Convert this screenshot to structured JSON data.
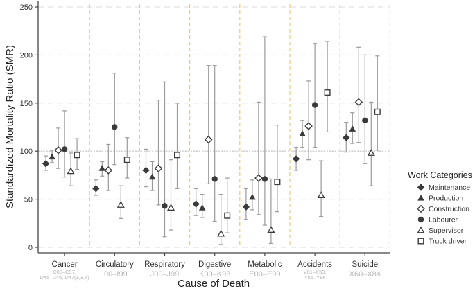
{
  "chart_data": {
    "type": "scatter",
    "subtype": "point-with-error-bars",
    "title": "",
    "xlabel": "Cause of Death",
    "ylabel": "Standardized Mortality Ratio (SMR)",
    "ylim": [
      0,
      250
    ],
    "yticks": [
      0,
      50,
      100,
      150,
      200,
      250
    ],
    "reference_line": 100,
    "grid": "horizontal dashed at y ticks; vertical dashed separators between categories",
    "legend": {
      "title": "Work Categories",
      "placement": "right"
    },
    "categories": [
      {
        "name": "Cancer",
        "codes": [
          "C00–C97,",
          "D45–D46, D47(1,3,4)"
        ]
      },
      {
        "name": "Circulatory",
        "codes": [
          "I00–I99"
        ]
      },
      {
        "name": "Respiratory",
        "codes": [
          "J00–J99"
        ]
      },
      {
        "name": "Digestive",
        "codes": [
          "K00–K93"
        ]
      },
      {
        "name": "Metabolic",
        "codes": [
          "E00–E99"
        ]
      },
      {
        "name": "Accidents",
        "codes": [
          "V01–X59,",
          "Y85–Y86"
        ]
      },
      {
        "name": "Suicide",
        "codes": [
          "X60–X84"
        ]
      }
    ],
    "series": [
      {
        "name": "Maintenance",
        "marker": "diamond-filled",
        "values": [
          87,
          61,
          80,
          45,
          42,
          92,
          114
        ],
        "lower": [
          80,
          54,
          63,
          33,
          29,
          80,
          99
        ],
        "upper": [
          95,
          70,
          102,
          61,
          61,
          104,
          130
        ]
      },
      {
        "name": "Production",
        "marker": "triangle-filled",
        "values": [
          94,
          82,
          73,
          41,
          52,
          118,
          123
        ],
        "lower": [
          88,
          74,
          59,
          31,
          39,
          104,
          108
        ],
        "upper": [
          101,
          89,
          89,
          55,
          70,
          132,
          140
        ]
      },
      {
        "name": "Construction",
        "marker": "diamond-open",
        "values": [
          101,
          80,
          82,
          112,
          72,
          126,
          151
        ],
        "lower": [
          82,
          59,
          44,
          66,
          34,
          91,
          109
        ],
        "upper": [
          124,
          107,
          153,
          189,
          151,
          173,
          208
        ]
      },
      {
        "name": "Labourer",
        "marker": "circle-filled",
        "values": [
          102,
          125,
          43,
          71,
          71,
          148,
          132
        ],
        "lower": [
          73,
          86,
          11,
          27,
          23,
          104,
          87
        ],
        "upper": [
          142,
          181,
          172,
          189,
          219,
          212,
          200
        ]
      },
      {
        "name": "Supervisor",
        "marker": "triangle-open",
        "values": [
          79,
          44,
          41,
          14,
          18,
          54,
          98
        ],
        "lower": [
          64,
          30,
          18,
          3,
          4,
          32,
          64
        ],
        "upper": [
          98,
          64,
          91,
          55,
          71,
          90,
          151
        ]
      },
      {
        "name": "Truck driver",
        "marker": "square-open",
        "values": [
          96,
          91,
          96,
          33,
          68,
          161,
          141
        ],
        "lower": [
          81,
          72,
          61,
          15,
          37,
          120,
          101
        ],
        "upper": [
          113,
          114,
          150,
          72,
          127,
          214,
          199
        ]
      }
    ]
  },
  "colors": {
    "marker": "#3a3a3a",
    "errorbar": "#9a9a9a",
    "separator": "#f0c87a",
    "grid": "#e2e2e2",
    "reference": "#c8c8c8",
    "axis": "#444444"
  }
}
